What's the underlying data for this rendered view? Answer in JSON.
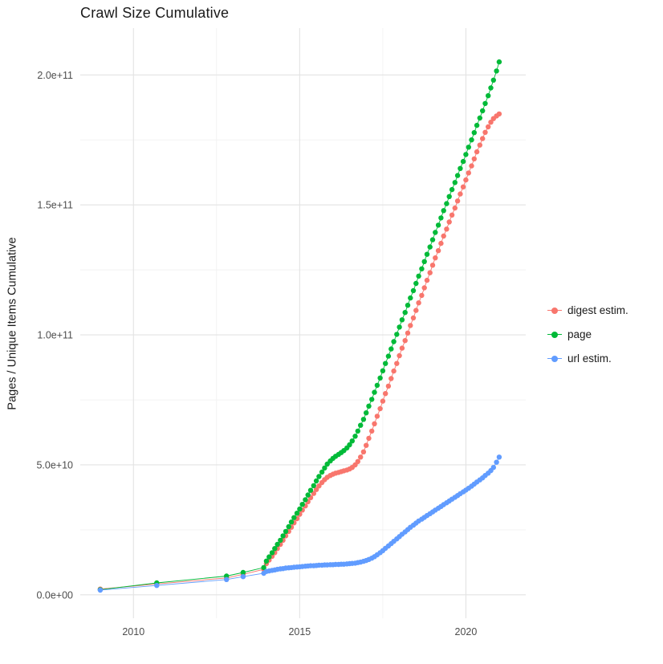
{
  "chart_data": {
    "type": "scatter",
    "title": "Crawl Size Cumulative",
    "xlabel": "",
    "ylabel": "Pages / Unique Items Cumulative",
    "grid": true,
    "legend_position": "right",
    "x_range": [
      2008.4,
      2021.8
    ],
    "y_range_e9": [
      -9,
      218
    ],
    "y_unit_multiplier": 1000000000,
    "x_ticks": [
      2010,
      2015,
      2020
    ],
    "x_tick_labels": [
      "2010",
      "2015",
      "2020"
    ],
    "x_minor_ticks": [
      2012.5,
      2017.5
    ],
    "y_ticks_e9": [
      0,
      50,
      100,
      150,
      200
    ],
    "y_tick_labels": [
      "0.0e+00",
      "5.0e+10",
      "1.0e+11",
      "1.5e+11",
      "2.0e+11"
    ],
    "y_minor_ticks_e9": [
      25,
      75,
      125,
      175
    ],
    "series": [
      {
        "name": "digest estim.",
        "color": "#F8766D",
        "points": [
          [
            2009.0,
            2.2
          ],
          [
            2010.7,
            4.2
          ],
          [
            2012.8,
            6.5
          ],
          [
            2013.3,
            7.9
          ],
          [
            2013.92,
            9.8
          ],
          [
            2014.0,
            12.0
          ],
          [
            2014.08,
            13.4
          ],
          [
            2014.17,
            14.8
          ],
          [
            2014.25,
            16.2
          ],
          [
            2014.33,
            17.8
          ],
          [
            2014.42,
            19.4
          ],
          [
            2014.5,
            21.0
          ],
          [
            2014.58,
            22.7
          ],
          [
            2014.67,
            24.4
          ],
          [
            2014.75,
            26.0
          ],
          [
            2014.83,
            27.7
          ],
          [
            2014.92,
            29.3
          ],
          [
            2015.0,
            31.0
          ],
          [
            2015.08,
            32.6
          ],
          [
            2015.17,
            34.2
          ],
          [
            2015.25,
            35.8
          ],
          [
            2015.33,
            37.4
          ],
          [
            2015.42,
            39.0
          ],
          [
            2015.5,
            40.5
          ],
          [
            2015.58,
            41.9
          ],
          [
            2015.67,
            43.2
          ],
          [
            2015.75,
            44.3
          ],
          [
            2015.83,
            45.2
          ],
          [
            2015.92,
            45.9
          ],
          [
            2016.0,
            46.4
          ],
          [
            2016.08,
            46.8
          ],
          [
            2016.17,
            47.1
          ],
          [
            2016.25,
            47.4
          ],
          [
            2016.33,
            47.7
          ],
          [
            2016.42,
            48.0
          ],
          [
            2016.5,
            48.4
          ],
          [
            2016.58,
            49.0
          ],
          [
            2016.67,
            50.0
          ],
          [
            2016.75,
            51.3
          ],
          [
            2016.83,
            53.0
          ],
          [
            2016.92,
            55.0
          ],
          [
            2017.0,
            57.5
          ],
          [
            2017.08,
            60.2
          ],
          [
            2017.17,
            63.0
          ],
          [
            2017.25,
            65.8
          ],
          [
            2017.33,
            68.7
          ],
          [
            2017.42,
            71.6
          ],
          [
            2017.5,
            74.5
          ],
          [
            2017.58,
            77.4
          ],
          [
            2017.67,
            80.3
          ],
          [
            2017.75,
            83.2
          ],
          [
            2017.83,
            86.1
          ],
          [
            2017.92,
            89.0
          ],
          [
            2018.0,
            92.0
          ],
          [
            2018.08,
            94.9
          ],
          [
            2018.17,
            97.8
          ],
          [
            2018.25,
            100.7
          ],
          [
            2018.33,
            103.6
          ],
          [
            2018.42,
            106.5
          ],
          [
            2018.5,
            109.4
          ],
          [
            2018.58,
            112.3
          ],
          [
            2018.67,
            115.2
          ],
          [
            2018.75,
            118.1
          ],
          [
            2018.83,
            121.0
          ],
          [
            2018.92,
            123.9
          ],
          [
            2019.0,
            126.8
          ],
          [
            2019.08,
            129.6
          ],
          [
            2019.17,
            132.4
          ],
          [
            2019.25,
            135.2
          ],
          [
            2019.33,
            138.0
          ],
          [
            2019.42,
            140.7
          ],
          [
            2019.5,
            143.4
          ],
          [
            2019.58,
            146.1
          ],
          [
            2019.67,
            148.8
          ],
          [
            2019.75,
            151.5
          ],
          [
            2019.83,
            154.2
          ],
          [
            2019.92,
            156.9
          ],
          [
            2020.0,
            159.6
          ],
          [
            2020.08,
            162.3
          ],
          [
            2020.17,
            165.0
          ],
          [
            2020.25,
            167.7
          ],
          [
            2020.33,
            170.4
          ],
          [
            2020.42,
            173.0
          ],
          [
            2020.5,
            175.5
          ],
          [
            2020.58,
            177.9
          ],
          [
            2020.67,
            180.0
          ],
          [
            2020.75,
            181.8
          ],
          [
            2020.83,
            183.2
          ],
          [
            2020.92,
            184.2
          ],
          [
            2021.0,
            185.0
          ]
        ]
      },
      {
        "name": "page",
        "color": "#00BA38",
        "points": [
          [
            2009.0,
            2.0
          ],
          [
            2010.7,
            4.6
          ],
          [
            2012.8,
            7.2
          ],
          [
            2013.3,
            8.6
          ],
          [
            2013.92,
            10.5
          ],
          [
            2014.0,
            13.0
          ],
          [
            2014.08,
            14.6
          ],
          [
            2014.17,
            16.2
          ],
          [
            2014.25,
            17.8
          ],
          [
            2014.33,
            19.4
          ],
          [
            2014.42,
            21.0
          ],
          [
            2014.5,
            22.7
          ],
          [
            2014.58,
            24.4
          ],
          [
            2014.67,
            26.2
          ],
          [
            2014.75,
            28.0
          ],
          [
            2014.83,
            29.7
          ],
          [
            2014.92,
            31.4
          ],
          [
            2015.0,
            33.0
          ],
          [
            2015.08,
            34.8
          ],
          [
            2015.17,
            36.6
          ],
          [
            2015.25,
            38.4
          ],
          [
            2015.33,
            40.2
          ],
          [
            2015.42,
            42.0
          ],
          [
            2015.5,
            43.8
          ],
          [
            2015.58,
            45.5
          ],
          [
            2015.67,
            47.2
          ],
          [
            2015.75,
            48.8
          ],
          [
            2015.83,
            50.3
          ],
          [
            2015.92,
            51.5
          ],
          [
            2016.0,
            52.5
          ],
          [
            2016.08,
            53.3
          ],
          [
            2016.17,
            54.0
          ],
          [
            2016.25,
            54.7
          ],
          [
            2016.33,
            55.5
          ],
          [
            2016.42,
            56.5
          ],
          [
            2016.5,
            57.7
          ],
          [
            2016.58,
            59.2
          ],
          [
            2016.67,
            61.0
          ],
          [
            2016.75,
            63.0
          ],
          [
            2016.83,
            65.2
          ],
          [
            2016.92,
            67.5
          ],
          [
            2017.0,
            70.0
          ],
          [
            2017.08,
            72.6
          ],
          [
            2017.17,
            75.2
          ],
          [
            2017.25,
            77.9
          ],
          [
            2017.33,
            80.6
          ],
          [
            2017.42,
            83.4
          ],
          [
            2017.5,
            86.2
          ],
          [
            2017.58,
            89.0
          ],
          [
            2017.67,
            91.8
          ],
          [
            2017.75,
            94.6
          ],
          [
            2017.83,
            97.4
          ],
          [
            2017.92,
            100.2
          ],
          [
            2018.0,
            103.0
          ],
          [
            2018.08,
            105.8
          ],
          [
            2018.17,
            108.6
          ],
          [
            2018.25,
            111.4
          ],
          [
            2018.33,
            114.2
          ],
          [
            2018.42,
            117.0
          ],
          [
            2018.5,
            119.8
          ],
          [
            2018.58,
            122.6
          ],
          [
            2018.67,
            125.4
          ],
          [
            2018.75,
            128.2
          ],
          [
            2018.83,
            131.0
          ],
          [
            2018.92,
            133.8
          ],
          [
            2019.0,
            136.6
          ],
          [
            2019.08,
            139.4
          ],
          [
            2019.17,
            142.2
          ],
          [
            2019.25,
            145.0
          ],
          [
            2019.33,
            147.8
          ],
          [
            2019.42,
            150.5
          ],
          [
            2019.5,
            153.2
          ],
          [
            2019.58,
            155.9
          ],
          [
            2019.67,
            158.6
          ],
          [
            2019.75,
            161.3
          ],
          [
            2019.83,
            164.0
          ],
          [
            2019.92,
            166.7
          ],
          [
            2020.0,
            169.4
          ],
          [
            2020.08,
            172.2
          ],
          [
            2020.17,
            175.0
          ],
          [
            2020.25,
            177.8
          ],
          [
            2020.33,
            180.6
          ],
          [
            2020.42,
            183.4
          ],
          [
            2020.5,
            186.2
          ],
          [
            2020.58,
            189.0
          ],
          [
            2020.67,
            192.0
          ],
          [
            2020.75,
            195.0
          ],
          [
            2020.83,
            198.0
          ],
          [
            2020.92,
            201.5
          ],
          [
            2021.0,
            205.0
          ]
        ]
      },
      {
        "name": "url estim.",
        "color": "#619CFF",
        "points": [
          [
            2009.0,
            1.8
          ],
          [
            2010.7,
            3.6
          ],
          [
            2012.8,
            5.9
          ],
          [
            2013.3,
            7.0
          ],
          [
            2013.92,
            8.3
          ],
          [
            2014.0,
            9.0
          ],
          [
            2014.08,
            9.2
          ],
          [
            2014.17,
            9.4
          ],
          [
            2014.25,
            9.6
          ],
          [
            2014.33,
            9.8
          ],
          [
            2014.42,
            10.0
          ],
          [
            2014.5,
            10.1
          ],
          [
            2014.58,
            10.3
          ],
          [
            2014.67,
            10.4
          ],
          [
            2014.75,
            10.5
          ],
          [
            2014.83,
            10.6
          ],
          [
            2014.92,
            10.7
          ],
          [
            2015.0,
            10.8
          ],
          [
            2015.08,
            10.9
          ],
          [
            2015.17,
            11.0
          ],
          [
            2015.25,
            11.1
          ],
          [
            2015.33,
            11.2
          ],
          [
            2015.42,
            11.2
          ],
          [
            2015.5,
            11.3
          ],
          [
            2015.58,
            11.4
          ],
          [
            2015.67,
            11.4
          ],
          [
            2015.75,
            11.5
          ],
          [
            2015.83,
            11.5
          ],
          [
            2015.92,
            11.6
          ],
          [
            2016.0,
            11.6
          ],
          [
            2016.08,
            11.7
          ],
          [
            2016.17,
            11.7
          ],
          [
            2016.25,
            11.8
          ],
          [
            2016.33,
            11.8
          ],
          [
            2016.42,
            11.9
          ],
          [
            2016.5,
            12.0
          ],
          [
            2016.58,
            12.1
          ],
          [
            2016.67,
            12.2
          ],
          [
            2016.75,
            12.4
          ],
          [
            2016.83,
            12.6
          ],
          [
            2016.92,
            12.9
          ],
          [
            2017.0,
            13.2
          ],
          [
            2017.08,
            13.6
          ],
          [
            2017.17,
            14.1
          ],
          [
            2017.25,
            14.7
          ],
          [
            2017.33,
            15.4
          ],
          [
            2017.42,
            16.2
          ],
          [
            2017.5,
            17.0
          ],
          [
            2017.58,
            17.9
          ],
          [
            2017.67,
            18.8
          ],
          [
            2017.75,
            19.7
          ],
          [
            2017.83,
            20.6
          ],
          [
            2017.92,
            21.5
          ],
          [
            2018.0,
            22.4
          ],
          [
            2018.08,
            23.3
          ],
          [
            2018.17,
            24.2
          ],
          [
            2018.25,
            25.1
          ],
          [
            2018.33,
            26.0
          ],
          [
            2018.42,
            26.8
          ],
          [
            2018.5,
            27.6
          ],
          [
            2018.58,
            28.4
          ],
          [
            2018.67,
            29.1
          ],
          [
            2018.75,
            29.8
          ],
          [
            2018.83,
            30.5
          ],
          [
            2018.92,
            31.2
          ],
          [
            2019.0,
            31.9
          ],
          [
            2019.08,
            32.6
          ],
          [
            2019.17,
            33.3
          ],
          [
            2019.25,
            34.0
          ],
          [
            2019.33,
            34.7
          ],
          [
            2019.42,
            35.4
          ],
          [
            2019.5,
            36.1
          ],
          [
            2019.58,
            36.8
          ],
          [
            2019.67,
            37.5
          ],
          [
            2019.75,
            38.2
          ],
          [
            2019.83,
            38.9
          ],
          [
            2019.92,
            39.6
          ],
          [
            2020.0,
            40.3
          ],
          [
            2020.08,
            41.0
          ],
          [
            2020.17,
            41.8
          ],
          [
            2020.25,
            42.6
          ],
          [
            2020.33,
            43.4
          ],
          [
            2020.42,
            44.2
          ],
          [
            2020.5,
            45.0
          ],
          [
            2020.58,
            45.9
          ],
          [
            2020.67,
            46.8
          ],
          [
            2020.75,
            47.8
          ],
          [
            2020.83,
            49.0
          ],
          [
            2020.92,
            51.0
          ],
          [
            2021.0,
            53.0
          ]
        ]
      }
    ]
  }
}
